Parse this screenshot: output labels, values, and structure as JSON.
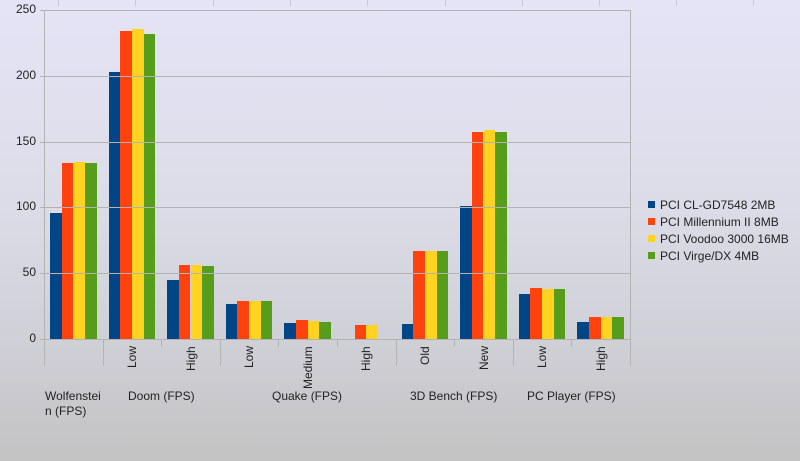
{
  "chart_data": {
    "type": "bar",
    "title": "",
    "xlabel": "",
    "ylabel": "",
    "ylim": [
      0,
      250
    ],
    "yticks": [
      0,
      50,
      100,
      150,
      200,
      250
    ],
    "grid": true,
    "legend_position": "right",
    "groups": [
      {
        "label": "Wolfenstein (FPS)",
        "display": "Wolfenstei\nn (FPS)",
        "subcategories": [
          ""
        ]
      },
      {
        "label": "Doom (FPS)",
        "display": "Doom (FPS)",
        "subcategories": [
          "Low",
          "High"
        ]
      },
      {
        "label": "Quake (FPS)",
        "display": "Quake (FPS)",
        "subcategories": [
          "Low",
          "Medium",
          "High"
        ]
      },
      {
        "label": "3D Bench (FPS)",
        "display": "3D Bench (FPS)",
        "subcategories": [
          "Old",
          "New"
        ]
      },
      {
        "label": "PC Player (FPS)",
        "display": "PC Player (FPS)",
        "subcategories": [
          "Low",
          "High"
        ]
      }
    ],
    "categories": [
      "Wolfenstein (FPS)",
      "Doom (FPS) / Low",
      "Doom (FPS) / High",
      "Quake (FPS) / Low",
      "Quake (FPS) / Medium",
      "Quake (FPS) / High",
      "3D Bench (FPS) / Old",
      "3D Bench (FPS) / New",
      "PC Player (FPS) / Low",
      "PC Player (FPS) / High"
    ],
    "series": [
      {
        "name": "PCI CL-GD7548 2MB",
        "color": "#004586",
        "values": [
          95.8,
          203,
          44.7,
          26.7,
          12.2,
          null,
          11.8,
          100.8,
          34.4,
          13
        ]
      },
      {
        "name": "PCI Millennium II 8MB",
        "color": "#ff420e",
        "values": [
          133.6,
          234,
          56,
          29,
          14.1,
          11,
          67,
          157.6,
          38.5,
          16.4
        ]
      },
      {
        "name": "PCI Voodoo 3000 16MB",
        "color": "#ffd320",
        "values": [
          134.4,
          235.5,
          56,
          29,
          14,
          11,
          67,
          158.8,
          38.2,
          16.4
        ]
      },
      {
        "name": "PCI Virge/DX 4MB",
        "color": "#579d1c",
        "values": [
          134,
          231.5,
          55.3,
          29,
          13.3,
          null,
          67,
          157.3,
          37.8,
          16.4
        ]
      }
    ]
  }
}
